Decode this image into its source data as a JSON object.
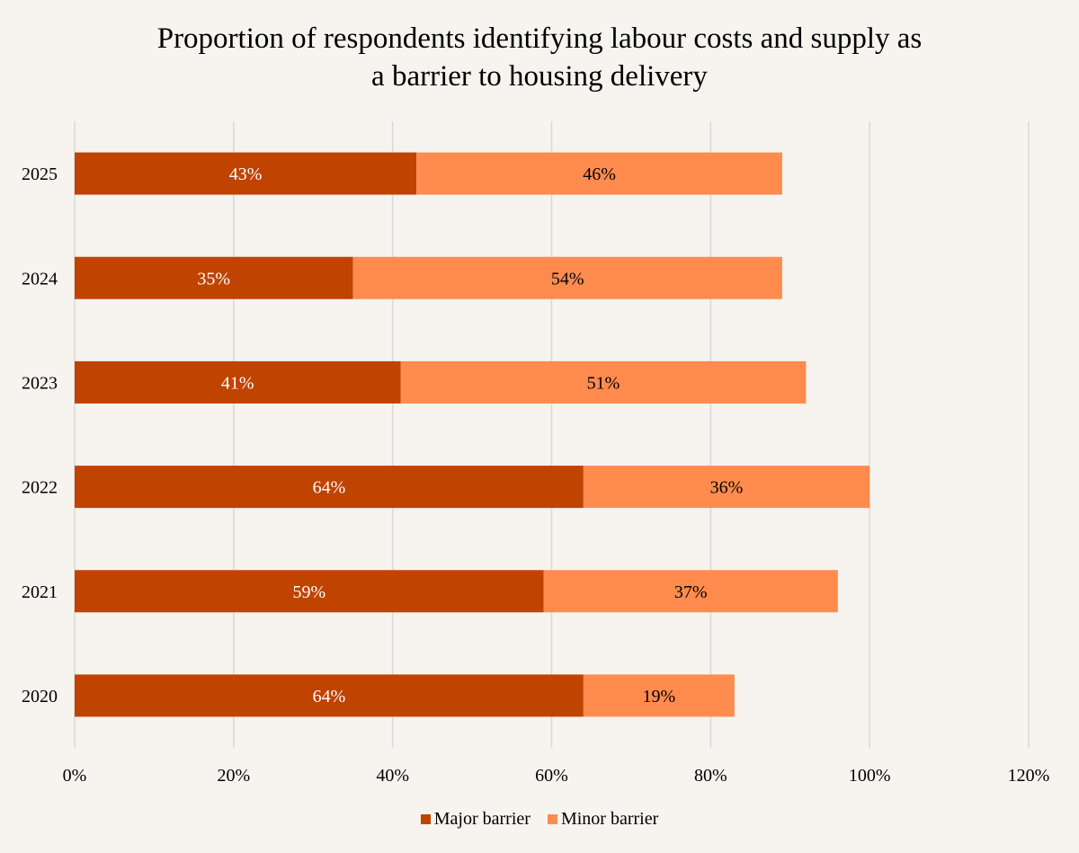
{
  "chart_data": {
    "type": "bar",
    "orientation": "horizontal",
    "stacked": true,
    "title": "Proportion of respondents identifying labour costs and supply as a barrier to housing delivery",
    "title_lines": [
      "Proportion of respondents identifying labour costs and supply as",
      "a barrier to housing delivery"
    ],
    "categories": [
      "2025",
      "2024",
      "2023",
      "2022",
      "2021",
      "2020"
    ],
    "series": [
      {
        "name": "Major barrier",
        "color": "#C04300",
        "label_color": "#FFFFFF",
        "values": [
          43,
          35,
          41,
          64,
          59,
          64
        ]
      },
      {
        "name": "Minor barrier",
        "color": "#FF8B4F",
        "label_color": "#000000",
        "values": [
          46,
          54,
          51,
          36,
          37,
          19
        ]
      }
    ],
    "xlim": [
      0,
      120
    ],
    "x_ticks": [
      "0%",
      "20%",
      "40%",
      "60%",
      "80%",
      "100%",
      "120%"
    ],
    "value_suffix": "%",
    "grid": "vertical",
    "legend_position": "bottom",
    "xlabel": "",
    "ylabel": ""
  }
}
